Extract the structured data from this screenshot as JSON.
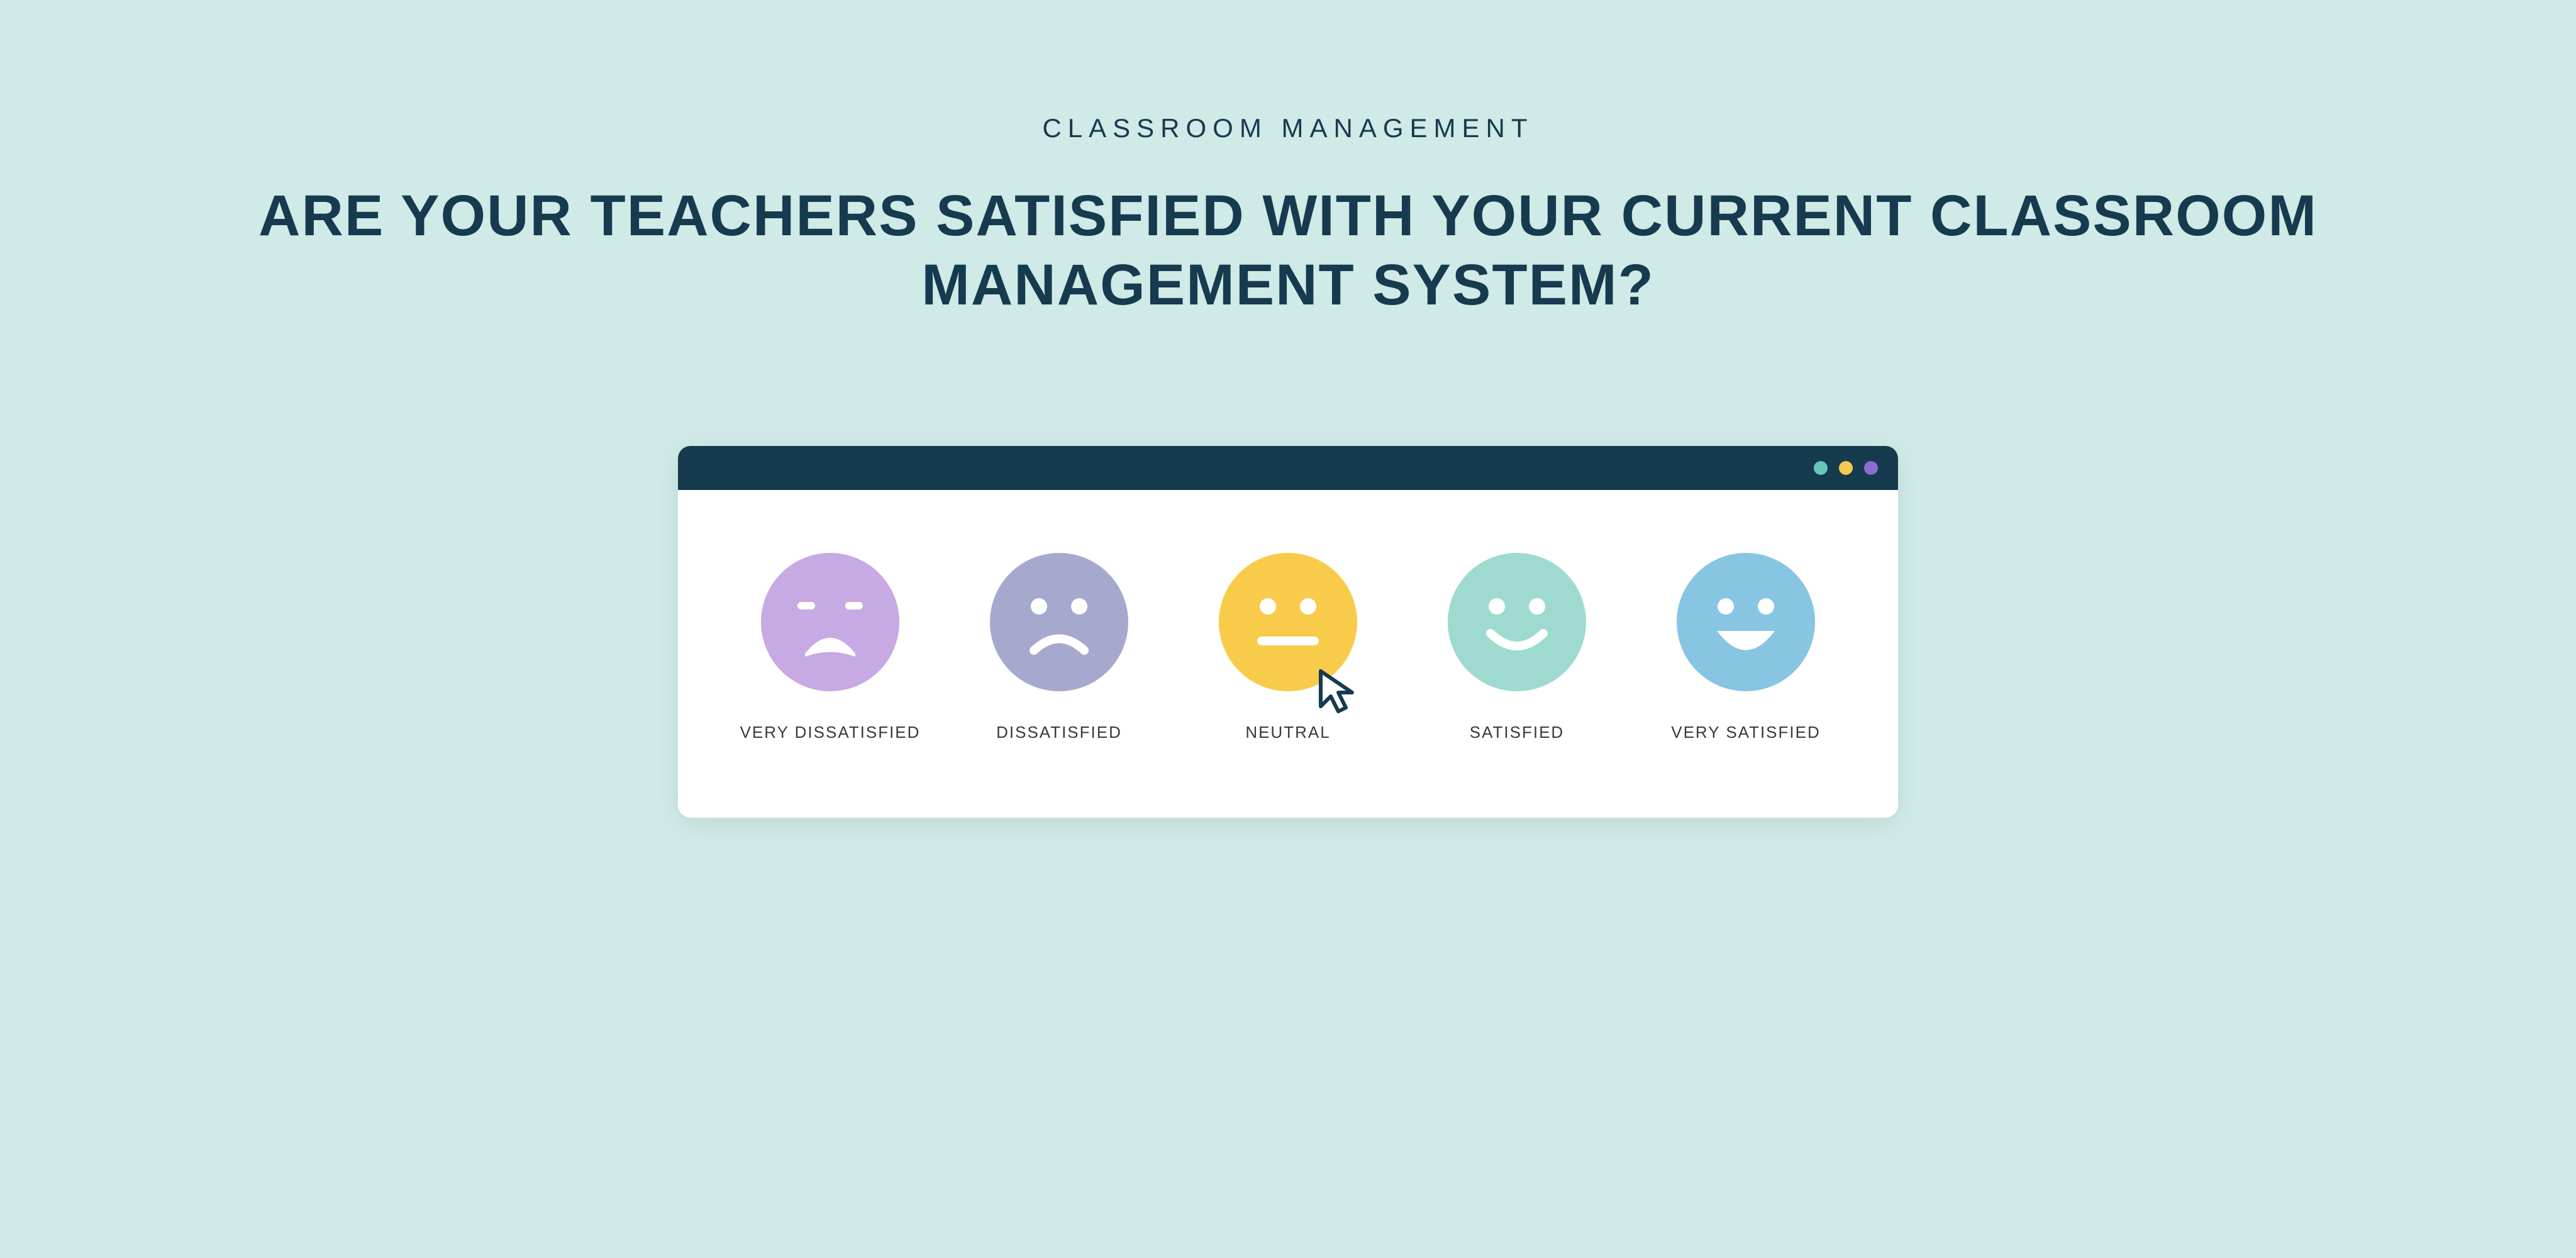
{
  "eyebrow": "CLASSROOM MANAGEMENT",
  "headline": "ARE YOUR TEACHERS SATISFIED WITH YOUR CURRENT CLASSROOM MANAGEMENT SYSTEM?",
  "background_color": "#cfeae7",
  "text_color": "#163a4e",
  "window": {
    "titlebar_color": "#163a4e",
    "body_color": "#ffffff",
    "dots": [
      "#6ac7b7",
      "#f3c94f",
      "#8b6fd0"
    ]
  },
  "options": [
    {
      "label": "VERY DISSATISFIED",
      "face_color": "#c7a9e3",
      "feature_color": "#ffffff",
      "mood": "very-dissatisfied"
    },
    {
      "label": "DISSATISFIED",
      "face_color": "#a6a8ce",
      "feature_color": "#ffffff",
      "mood": "dissatisfied"
    },
    {
      "label": "NEUTRAL",
      "face_color": "#f8cb4a",
      "feature_color": "#ffffff",
      "mood": "neutral",
      "cursor": true
    },
    {
      "label": "SATISFIED",
      "face_color": "#9fdad0",
      "feature_color": "#ffffff",
      "mood": "satisfied"
    },
    {
      "label": "VERY SATISFIED",
      "face_color": "#87c5e3",
      "feature_color": "#ffffff",
      "mood": "very-satisfied"
    }
  ],
  "cursor_color": "#163a4e"
}
